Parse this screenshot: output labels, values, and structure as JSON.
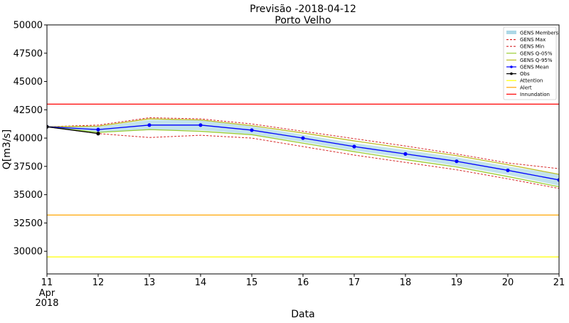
{
  "chart_data": {
    "type": "line",
    "title": "Previsão -2018-04-12",
    "subtitle": "Porto Velho",
    "xlabel": "Data",
    "ylabel": "Q[m3/s]",
    "x": [
      11,
      12,
      13,
      14,
      15,
      16,
      17,
      18,
      19,
      20,
      21
    ],
    "x_tick_labels": [
      "11",
      "12",
      "13",
      "14",
      "15",
      "16",
      "17",
      "18",
      "19",
      "20",
      "21"
    ],
    "x_tick_sublabels": [
      "Apr",
      "2018"
    ],
    "xlim": [
      11,
      21
    ],
    "ylim": [
      28000,
      50000
    ],
    "y_ticks": [
      30000,
      32500,
      35000,
      37500,
      40000,
      42500,
      45000,
      47500,
      50000
    ],
    "grid": false,
    "legend_position": "top-right",
    "series": [
      {
        "name": "GENS Members",
        "kind": "band",
        "color": "#add8e6",
        "lower": [
          41000,
          40500,
          40700,
          40700,
          40350,
          39650,
          38900,
          38250,
          37550,
          36750,
          35800
        ],
        "upper": [
          41000,
          41000,
          41600,
          41600,
          41050,
          40300,
          39550,
          38950,
          38300,
          37500,
          36800
        ]
      },
      {
        "name": "GENS Max",
        "color": "#d62728",
        "style": "dashed",
        "values": [
          41000,
          41150,
          41800,
          41700,
          41250,
          40600,
          39950,
          39300,
          38600,
          37800,
          37300
        ]
      },
      {
        "name": "GENS Min",
        "color": "#d62728",
        "style": "dashed",
        "values": [
          41000,
          40400,
          40050,
          40250,
          40000,
          39250,
          38500,
          37850,
          37200,
          36400,
          35550
        ]
      },
      {
        "name": "GENS Q-05%",
        "color": "#9acd32",
        "style": "solid",
        "values": [
          41000,
          40500,
          40750,
          40600,
          40300,
          39550,
          38800,
          38100,
          37450,
          36600,
          35700
        ]
      },
      {
        "name": "GENS Q-95%",
        "color": "#bcbd22",
        "style": "solid",
        "values": [
          41000,
          41050,
          41700,
          41600,
          41100,
          40450,
          39750,
          39100,
          38450,
          37650,
          36800
        ]
      },
      {
        "name": "GENS Mean",
        "color": "#0000ff",
        "style": "solid",
        "marker": "circle",
        "values": [
          41000,
          40750,
          41150,
          41150,
          40700,
          40000,
          39250,
          38600,
          37950,
          37150,
          36300
        ]
      },
      {
        "name": "Obs",
        "color": "#000000",
        "style": "solid",
        "marker": "circle",
        "x": [
          11,
          12
        ],
        "values": [
          41000,
          40400
        ]
      },
      {
        "name": "Attention",
        "color": "#ffff00",
        "style": "hline",
        "value": 29500
      },
      {
        "name": "Alert",
        "color": "#ffa500",
        "style": "hline",
        "value": 33200
      },
      {
        "name": "Innundation",
        "color": "#ff0000",
        "style": "hline",
        "value": 43000
      }
    ]
  }
}
